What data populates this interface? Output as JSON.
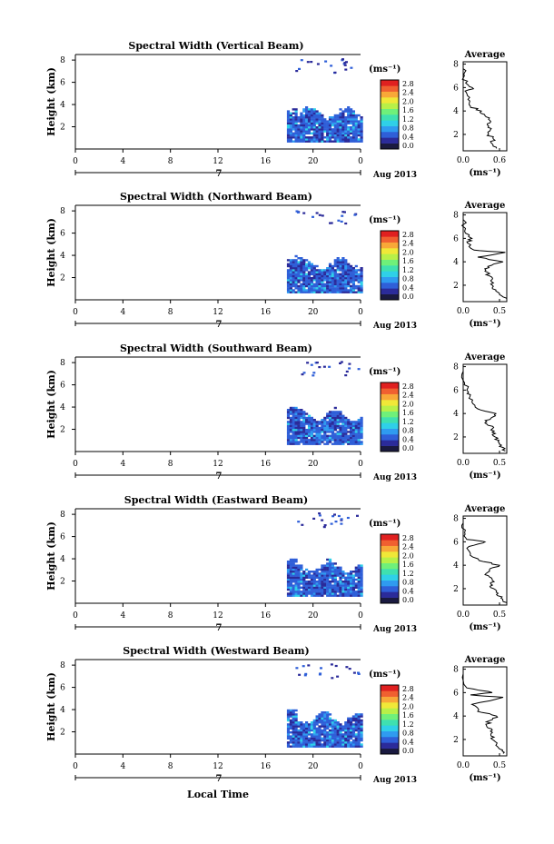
{
  "chart_data": {
    "type": "heatmap",
    "shared_xlabel": "Local Time",
    "date_label": "Aug 2013",
    "day_label": "7",
    "x_ticks": [
      "0",
      "4",
      "8",
      "12",
      "16",
      "20",
      "0"
    ],
    "y_ticks_main": [
      "2",
      "4",
      "6",
      "8"
    ],
    "colorbar": {
      "unit_label": "(ms⁻¹)",
      "ticks": [
        "0.0",
        "0.4",
        "0.8",
        "1.2",
        "1.6",
        "2.0",
        "2.4",
        "2.8"
      ],
      "range": [
        0,
        2.8
      ],
      "colors": [
        "#1a1a40",
        "#2b2b9a",
        "#2f5fd8",
        "#2f9bf0",
        "#2fd0e8",
        "#3fe0b0",
        "#6ff07a",
        "#b8f048",
        "#f0e838",
        "#f8a838",
        "#f06030",
        "#e02020"
      ]
    },
    "panels": [
      {
        "title": "Spectral Width (Vertical Beam)",
        "ylabel": "Height (km)",
        "avg_title": "Average",
        "avg_xticks": [
          "0.0",
          "0.6"
        ],
        "avg_xlabel": "(ms⁻¹)",
        "avg_yticks": [
          "2",
          "4",
          "6",
          "8"
        ],
        "avg_profile": [
          [
            0.55,
            0.8
          ],
          [
            0.48,
            1.2
          ],
          [
            0.5,
            1.6
          ],
          [
            0.42,
            2.0
          ],
          [
            0.45,
            2.4
          ],
          [
            0.4,
            2.8
          ],
          [
            0.44,
            3.2
          ],
          [
            0.36,
            3.6
          ],
          [
            0.3,
            4.0
          ],
          [
            0.12,
            4.4
          ],
          [
            0.08,
            5.0
          ],
          [
            0.05,
            5.6
          ],
          [
            0.15,
            6.0
          ],
          [
            0.04,
            6.4
          ],
          [
            0.02,
            7.0
          ],
          [
            0.0,
            7.6
          ]
        ]
      },
      {
        "title": "Spectral Width (Northward Beam)",
        "ylabel": "Height (km)",
        "avg_title": "Average",
        "avg_xticks": [
          "0.0",
          "0.5"
        ],
        "avg_xlabel": "(ms⁻¹)",
        "avg_yticks": [
          "2",
          "4",
          "6",
          "8"
        ],
        "avg_profile": [
          [
            0.6,
            0.8
          ],
          [
            0.5,
            1.2
          ],
          [
            0.45,
            1.6
          ],
          [
            0.4,
            2.0
          ],
          [
            0.38,
            2.4
          ],
          [
            0.36,
            2.8
          ],
          [
            0.3,
            3.2
          ],
          [
            0.34,
            3.6
          ],
          [
            0.55,
            4.0
          ],
          [
            0.2,
            4.4
          ],
          [
            0.58,
            4.8
          ],
          [
            0.15,
            5.0
          ],
          [
            0.06,
            5.6
          ],
          [
            0.12,
            6.0
          ],
          [
            0.02,
            6.6
          ],
          [
            0.0,
            7.6
          ]
        ]
      },
      {
        "title": "Spectral Width (Southward Beam)",
        "ylabel": "Height (km)",
        "avg_title": "Average",
        "avg_xticks": [
          "0.0",
          "0.5"
        ],
        "avg_xlabel": "(ms⁻¹)",
        "avg_yticks": [
          "2",
          "4",
          "6",
          "8"
        ],
        "avg_profile": [
          [
            0.58,
            0.8
          ],
          [
            0.5,
            1.2
          ],
          [
            0.48,
            1.6
          ],
          [
            0.44,
            2.0
          ],
          [
            0.4,
            2.4
          ],
          [
            0.42,
            2.8
          ],
          [
            0.3,
            3.2
          ],
          [
            0.38,
            3.6
          ],
          [
            0.45,
            4.0
          ],
          [
            0.2,
            4.4
          ],
          [
            0.12,
            5.0
          ],
          [
            0.1,
            5.6
          ],
          [
            0.05,
            6.0
          ],
          [
            0.02,
            6.6
          ],
          [
            0.0,
            7.6
          ]
        ]
      },
      {
        "title": "Spectral Width (Eastward Beam)",
        "ylabel": "Height (km)",
        "avg_title": "Average",
        "avg_xticks": [
          "0.0",
          "0.5"
        ],
        "avg_xlabel": "(ms⁻¹)",
        "avg_yticks": [
          "2",
          "4",
          "6",
          "8"
        ],
        "avg_profile": [
          [
            0.6,
            0.8
          ],
          [
            0.52,
            1.2
          ],
          [
            0.48,
            1.6
          ],
          [
            0.42,
            2.0
          ],
          [
            0.38,
            2.4
          ],
          [
            0.4,
            2.8
          ],
          [
            0.3,
            3.2
          ],
          [
            0.36,
            3.6
          ],
          [
            0.5,
            4.0
          ],
          [
            0.22,
            4.4
          ],
          [
            0.1,
            5.0
          ],
          [
            0.08,
            5.6
          ],
          [
            0.3,
            6.0
          ],
          [
            0.05,
            6.2
          ],
          [
            0.02,
            6.8
          ],
          [
            0.0,
            7.6
          ]
        ]
      },
      {
        "title": "Spectral Width (Westward Beam)",
        "ylabel": "Height (km)",
        "avg_title": "Average",
        "avg_xticks": [
          "0.0",
          "0.5"
        ],
        "avg_xlabel": "(ms⁻¹)",
        "avg_yticks": [
          "2",
          "4",
          "6",
          "8"
        ],
        "avg_profile": [
          [
            0.55,
            0.8
          ],
          [
            0.5,
            1.2
          ],
          [
            0.46,
            1.6
          ],
          [
            0.4,
            2.0
          ],
          [
            0.38,
            2.4
          ],
          [
            0.4,
            2.8
          ],
          [
            0.32,
            3.2
          ],
          [
            0.36,
            3.6
          ],
          [
            0.46,
            4.0
          ],
          [
            0.2,
            4.4
          ],
          [
            0.12,
            5.0
          ],
          [
            0.55,
            5.6
          ],
          [
            0.1,
            5.8
          ],
          [
            0.4,
            6.0
          ],
          [
            0.05,
            6.4
          ],
          [
            0.0,
            7.6
          ]
        ]
      }
    ]
  }
}
